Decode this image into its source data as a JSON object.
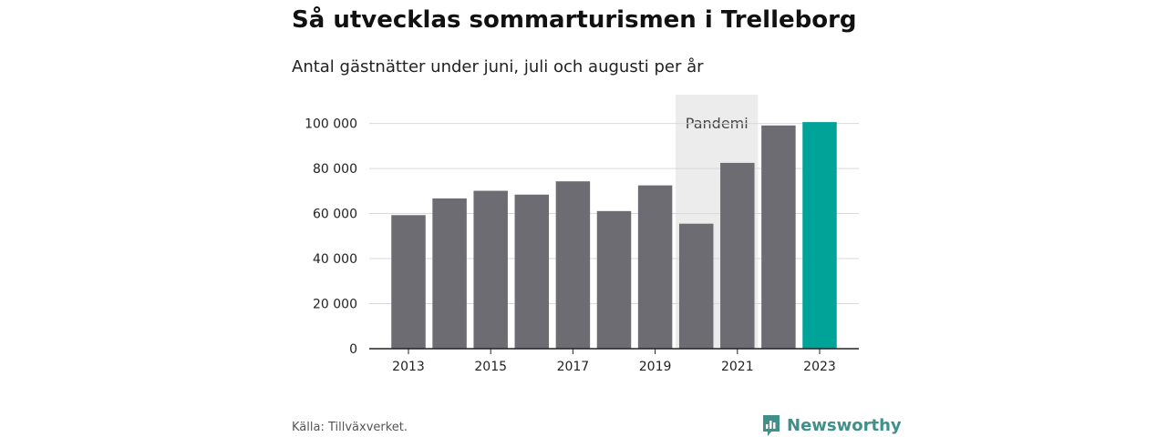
{
  "header": {
    "title": "Så utvecklas sommarturismen i Trelleborg",
    "subtitle": "Antal gästnätter under juni, juli och augusti per år"
  },
  "footer": {
    "source": "Källa: Tillväxverket.",
    "brand": "Newsworthy"
  },
  "colors": {
    "bar": "#6d6c73",
    "highlight": "#00a398",
    "band": "#ececec",
    "grid": "#d9d9d9",
    "axis": "#222222",
    "brand": "#3f8f8b"
  },
  "icons": {
    "brand_logo": "bar-chart-speech-bubble-icon"
  },
  "chart_data": {
    "type": "bar",
    "title": "Så utvecklas sommarturismen i Trelleborg",
    "subtitle": "Antal gästnätter under juni, juli och augusti per år",
    "xlabel": "",
    "ylabel": "",
    "categories": [
      2013,
      2014,
      2015,
      2016,
      2017,
      2018,
      2019,
      2020,
      2021,
      2022,
      2023
    ],
    "values": [
      59300,
      66700,
      70100,
      68400,
      74300,
      61100,
      72500,
      55500,
      82500,
      99100,
      100600
    ],
    "highlight_category": 2023,
    "ylim": [
      0,
      116000
    ],
    "yticks": [
      0,
      20000,
      40000,
      60000,
      80000,
      100000
    ],
    "ytick_labels": [
      "0",
      "20 000",
      "40 000",
      "60 000",
      "80 000",
      "100 000"
    ],
    "xticks": [
      2013,
      2015,
      2017,
      2019,
      2021,
      2023
    ],
    "xtick_labels": [
      "2013",
      "2015",
      "2017",
      "2019",
      "2021",
      "2023"
    ],
    "grid": true,
    "annotation": {
      "label": "Pandemi",
      "from_category": 2020,
      "to_category": 2021
    }
  }
}
